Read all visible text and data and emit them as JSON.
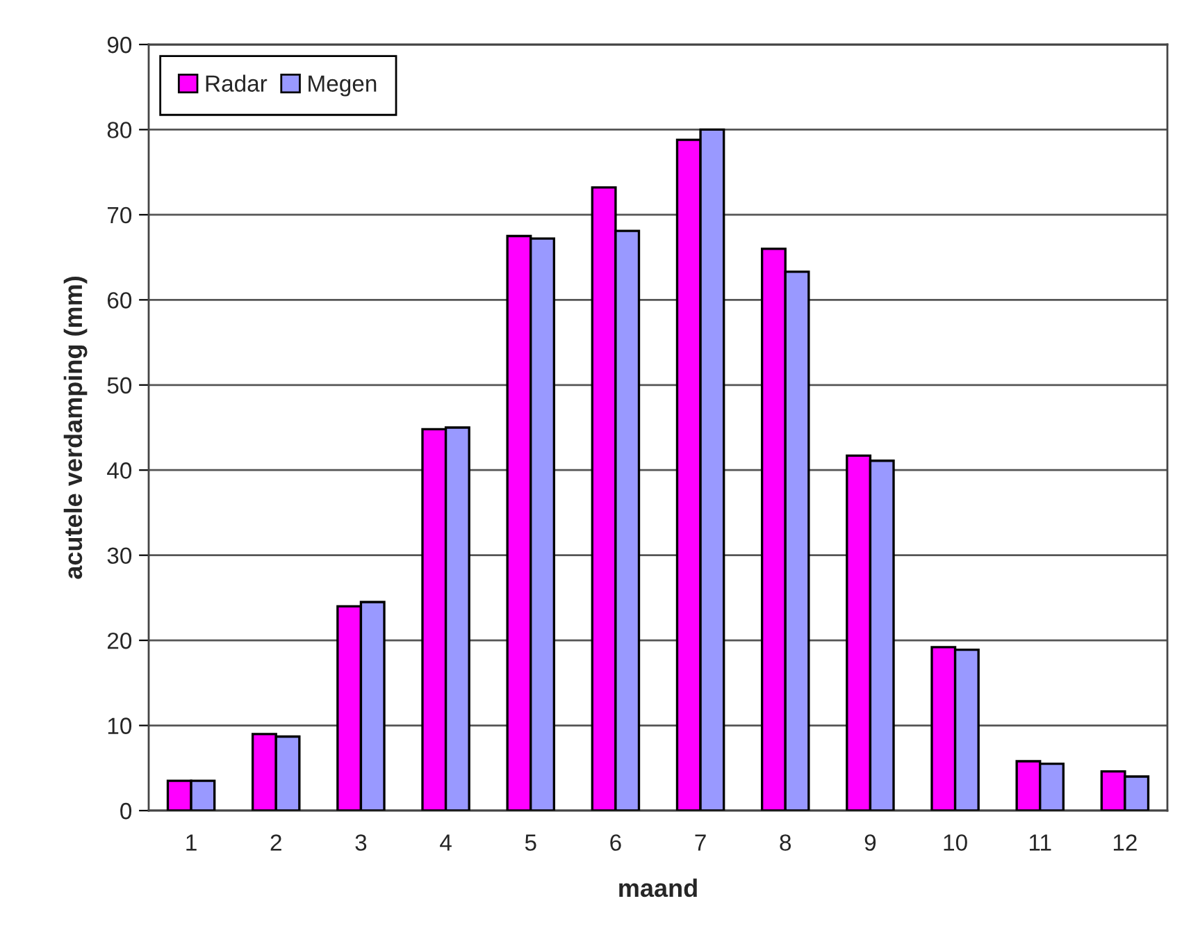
{
  "chart_data": {
    "type": "bar",
    "xlabel": "maand",
    "ylabel": "acutele verdamping (mm)",
    "categories": [
      "1",
      "2",
      "3",
      "4",
      "5",
      "6",
      "7",
      "8",
      "9",
      "10",
      "11",
      "12"
    ],
    "series": [
      {
        "name": "Radar",
        "color": "#ff00ff",
        "values": [
          3.5,
          9.0,
          24.0,
          44.8,
          67.5,
          73.2,
          78.8,
          66.0,
          41.7,
          19.2,
          5.8,
          4.6
        ]
      },
      {
        "name": "Megen",
        "color": "#9999ff",
        "values": [
          3.5,
          8.7,
          24.5,
          45.0,
          67.2,
          68.1,
          80.0,
          63.3,
          41.1,
          18.9,
          5.5,
          4.0
        ]
      }
    ],
    "ylim": [
      0,
      90
    ],
    "yticks": [
      0,
      10,
      20,
      30,
      40,
      50,
      60,
      70,
      80,
      90
    ],
    "grid": "y",
    "legend": "top left"
  }
}
